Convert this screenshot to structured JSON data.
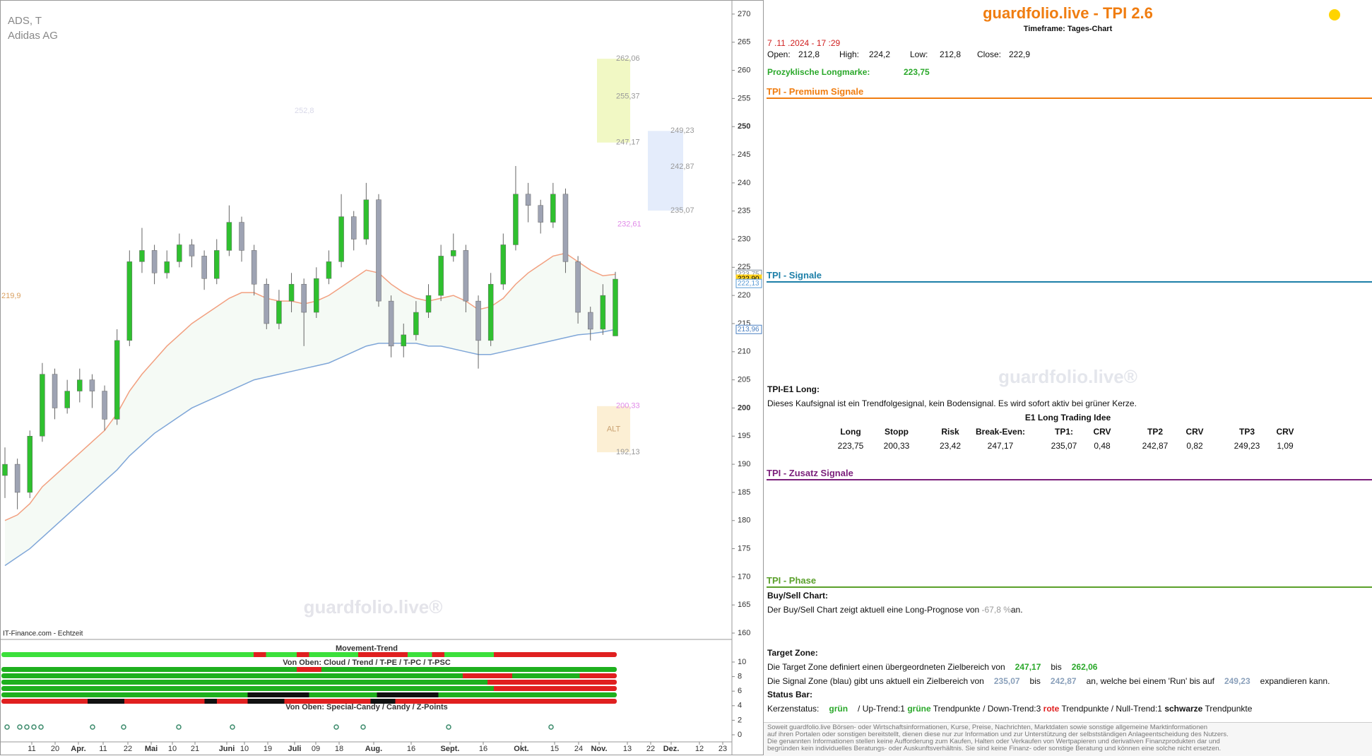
{
  "chart_data": {
    "type": "candlestick",
    "symbol": "ADS, T",
    "name": "Adidas AG",
    "source": "IT-Finance.com - Echtzeit",
    "watermark": "guardfolio.live®",
    "open": [
      188,
      190,
      185,
      195,
      206,
      200,
      203,
      205,
      203,
      198,
      212,
      226,
      228,
      224,
      226,
      229,
      227,
      223,
      228,
      233,
      228,
      222,
      215,
      219,
      222,
      217,
      223,
      226,
      234,
      230,
      237,
      219,
      211,
      213,
      217,
      220,
      227,
      228,
      219,
      212,
      222,
      229,
      238,
      236,
      233,
      238,
      226,
      217,
      214,
      212.8
    ],
    "high": [
      193,
      191,
      196,
      208,
      207,
      205,
      207,
      206,
      204,
      214,
      228,
      232,
      229,
      228,
      231,
      230,
      228,
      230,
      236,
      234,
      229,
      223,
      221,
      224,
      223,
      225,
      228,
      238,
      235,
      240,
      238,
      220,
      215,
      219,
      222,
      229,
      231,
      229,
      220,
      224,
      231,
      243,
      240,
      237,
      240,
      239,
      227,
      218,
      222,
      224.2
    ],
    "low": [
      184,
      182,
      184,
      194,
      198,
      199,
      201,
      200,
      196,
      197,
      211,
      224,
      222,
      223,
      225,
      225,
      221,
      222,
      227,
      226,
      220,
      214,
      214,
      217,
      211,
      216,
      222,
      225,
      228,
      229,
      218,
      209,
      209,
      212,
      216,
      219,
      226,
      217,
      207,
      211,
      221,
      228,
      233,
      231,
      232,
      224,
      215,
      212,
      213,
      212.8
    ],
    "close": [
      190,
      185,
      195,
      206,
      200,
      203,
      205,
      203,
      198,
      212,
      226,
      228,
      224,
      226,
      229,
      227,
      223,
      228,
      233,
      228,
      222,
      215,
      219,
      222,
      217,
      223,
      226,
      234,
      230,
      237,
      219,
      211,
      213,
      217,
      220,
      227,
      228,
      219,
      212,
      222,
      229,
      238,
      236,
      233,
      238,
      226,
      217,
      214,
      220,
      222.9
    ],
    "up_color": "#2fc02f",
    "down_color": "#9ea3b3",
    "overlays": [
      {
        "color": "#f2a080",
        "values": [
          180,
          181,
          183,
          186,
          188,
          190,
          192,
          194,
          196,
          199,
          203,
          206,
          208.5,
          211,
          213,
          215,
          216.5,
          218,
          219.5,
          220.5,
          220.5,
          219.5,
          219,
          219,
          218.5,
          219,
          220,
          221.5,
          223,
          224.5,
          224,
          222,
          220.5,
          219.5,
          219,
          219.5,
          220,
          219,
          217.5,
          218,
          219.5,
          222,
          224,
          225.5,
          227,
          227.5,
          226,
          224.5,
          223.5,
          223.75
        ]
      },
      {
        "color": "#7fa6d8",
        "values": [
          172,
          173.5,
          175,
          177,
          179,
          181,
          183,
          185,
          187,
          189,
          191.5,
          193.5,
          195.5,
          197,
          198.5,
          200,
          201,
          202,
          203,
          204,
          205,
          205.5,
          206,
          206.5,
          207,
          207.5,
          208,
          209,
          210,
          211,
          211.5,
          211.5,
          211.5,
          211.5,
          211,
          211,
          210.5,
          210,
          209.5,
          209.5,
          210,
          210.5,
          211,
          211.5,
          212,
          212.5,
          213,
          213.2,
          213.5,
          213.96
        ]
      }
    ],
    "ylim": [
      159,
      272.5
    ],
    "yticks": [
      160,
      165,
      170,
      175,
      180,
      185,
      190,
      195,
      200,
      205,
      210,
      215,
      220,
      225,
      230,
      235,
      240,
      245,
      250,
      255,
      260,
      265,
      270
    ],
    "xtick_labels": [
      "11",
      "20",
      "Apr.",
      "11",
      "22",
      "Mai",
      "10",
      "21",
      "Juni",
      "10",
      "19",
      "Juli",
      "09",
      "18",
      "Aug.",
      "16",
      "Sept.",
      "16",
      "Okt.",
      "15",
      "24",
      "Nov.",
      "13",
      "22",
      "Dez.",
      "12",
      "23"
    ],
    "price_labels": [
      {
        "value": 223.75,
        "label": "223,75",
        "color": "#7a8a99"
      },
      {
        "value": 222.9,
        "label": "222,90",
        "color": "#ffd21f"
      },
      {
        "value": 222.13,
        "label": "222,13",
        "color": "#5a9bd5"
      },
      {
        "value": 213.96,
        "label": "213,96",
        "color": "#4a7fc0"
      }
    ],
    "zones": [
      {
        "color": "#f1f8c4",
        "levels": [
          {
            "value": 262.06,
            "label": "262,06"
          },
          {
            "value": 255.37,
            "label": "255,37"
          },
          {
            "value": 247.17,
            "label": "247,17"
          }
        ]
      },
      {
        "color": "#e4ecfb",
        "levels": [
          {
            "value": 249.23,
            "label": "249,23"
          },
          {
            "value": 242.87,
            "label": "242,87"
          },
          {
            "value": 235.07,
            "label": "235,07"
          }
        ]
      },
      {
        "color": "#fcefd4",
        "text": "ALT",
        "levels": [
          {
            "value": 200.33,
            "label": "200,33"
          },
          {
            "value": 192.13,
            "label": "192,13"
          }
        ]
      }
    ],
    "annotations": [
      {
        "value": 232.61,
        "label": "232,61",
        "color": "#e08ae8"
      },
      {
        "value": 252.8,
        "label": "252,8",
        "color": "#d8d8e8"
      },
      {
        "value": 219.9,
        "label": "219,9",
        "color": "#d9a060"
      }
    ]
  },
  "indicator": {
    "title": "Movement-Trend",
    "subtitle_1": "Von Oben: Cloud / Trend / T-PE / T-PC / T-PSC",
    "subtitle_2": "Von Oben: Special-Candy / Candy / Z-Points",
    "yticks": [
      10,
      8,
      6,
      4,
      2,
      0
    ]
  },
  "panel": {
    "title": "guardfolio.live - TPI 2.6",
    "timeframe": "Timeframe: Tages-Chart",
    "datetime": "7 .11 .2024 - 17 :29",
    "ohlc_labels": [
      "Open:",
      "High:",
      "Low:",
      "Close:"
    ],
    "ohlc_values": [
      "212,8",
      "224,2",
      "212,8",
      "222,9"
    ],
    "longmark_label": "Prozyklische Longmarke:",
    "longmark_value": "223,75",
    "sections": [
      "TPI - Premium Signale",
      "TPI - Signale",
      "TPI - Zusatz Signale",
      "TPI - Phase"
    ],
    "watermark": "guardfolio.live®",
    "e1_title": "TPI-E1 Long:",
    "e1_text": "Dieses Kaufsignal ist ein Trendfolgesignal, kein Bodensignal. Es wird sofort aktiv bei grüner Kerze.",
    "e1_table_title": "E1 Long Trading Idee",
    "e1_header": [
      "Long",
      "Stopp",
      "Risk",
      "Break-Even:",
      "TP1:",
      "CRV",
      "TP2",
      "CRV",
      "TP3",
      "CRV"
    ],
    "e1_row": [
      "223,75",
      "200,33",
      "23,42",
      "247,17",
      "235,07",
      "0,48",
      "242,87",
      "0,82",
      "249,23",
      "1,09"
    ],
    "buysell_title": "Buy/Sell Chart:",
    "buysell_text": [
      "Der Buy/Sell Chart zeigt aktuell eine Long-Prognose von",
      "-67,8 %",
      "an."
    ],
    "target_title": "Target Zone:",
    "target_text": [
      "Die Target Zone definiert einen übergeordneten Zielbereich von",
      "247,17",
      "bis",
      "262,06"
    ],
    "signal_text": [
      "Die Signal Zone (blau) gibt uns aktuell ein Zielbereich von",
      "235,07",
      "bis",
      "242,87",
      "an, welche bei einem 'Run' bis auf",
      "249,23",
      "expandieren kann."
    ],
    "status_title": "Status Bar:",
    "status_text": [
      "Kerzenstatus:",
      "grün",
      "/ Up-Trend:1",
      "grüne",
      "Trendpunkte",
      "/ Down-Trend:3",
      "rote",
      "Trendpunkte / Null-Trend:1",
      "schwarze",
      "Trendpunkte"
    ],
    "disclaimer": [
      "Soweit guardfolio.live Börsen- oder Wirtschaftsinformationen, Kurse, Preise, Nachrichten, Marktdaten sowie sonstige allgemeine Marktinformationen",
      "auf ihren Portalen oder sonstigen bereitstellt, dienen diese nur zur Information und zur Unterstützung der selbstständigen Anlageentscheidung des Nutzers.",
      "Die genannten Informationen stellen keine Aufforderung zum Kaufen, Halten oder Verkaufen von Wertpapieren und derivativen Finanzprodukten dar und",
      "begründen kein individuelles Beratungs- oder Auskunftsverhältnis. Sie sind keine Finanz- oder sonstige Beratung und können eine solche nicht ersetzen."
    ]
  }
}
